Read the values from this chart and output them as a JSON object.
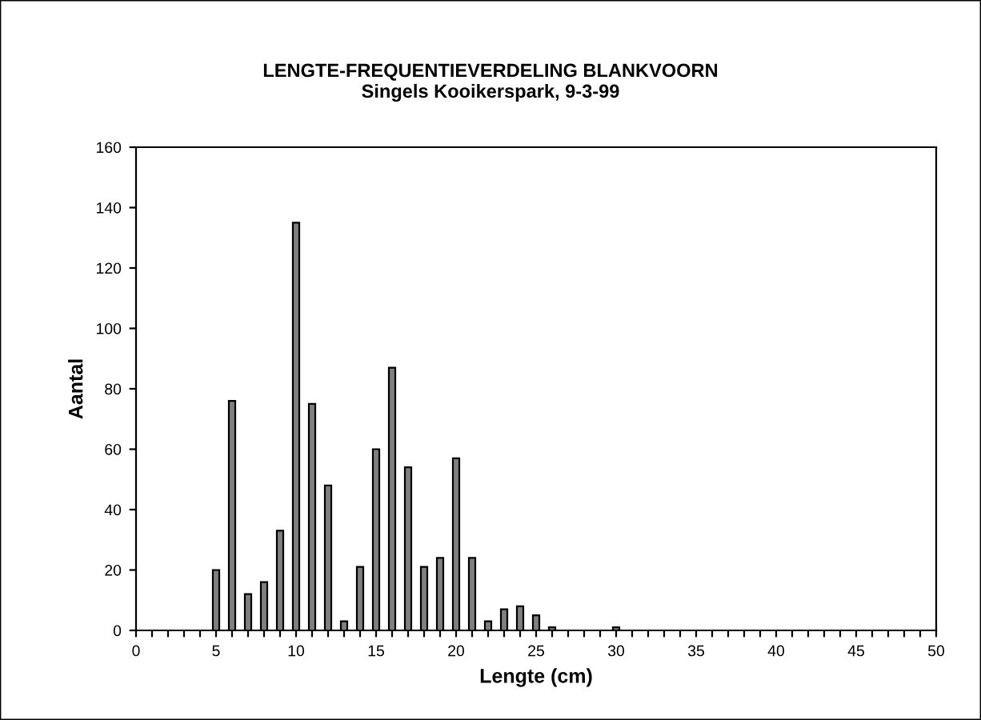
{
  "chart_data": {
    "type": "bar",
    "title": "LENGTE-FREQUENTIEVERDELING BLANKVOORN",
    "subtitle": "Singels Kooikerspark, 9-3-99",
    "xlabel": "Lengte (cm)",
    "ylabel": "Aantal",
    "x": [
      5,
      6,
      7,
      8,
      9,
      10,
      11,
      12,
      13,
      14,
      15,
      16,
      17,
      18,
      19,
      20,
      21,
      22,
      23,
      24,
      25,
      26,
      30
    ],
    "values": [
      20,
      76,
      12,
      16,
      33,
      135,
      75,
      48,
      3,
      21,
      60,
      87,
      54,
      21,
      24,
      57,
      24,
      3,
      7,
      8,
      5,
      1,
      1
    ],
    "color": "#808080",
    "xlim": [
      0,
      50
    ],
    "ylim": [
      0,
      160
    ],
    "xticks": [
      0,
      {
        "value": 1,
        "label": null
      },
      {
        "value": 2,
        "label": null
      },
      {
        "value": 3,
        "label": null
      },
      {
        "value": 4,
        "label": null
      },
      5,
      {
        "value": 6,
        "label": null
      },
      {
        "value": 7,
        "label": null
      },
      {
        "value": 8,
        "label": null
      },
      {
        "value": 9,
        "label": null
      },
      10,
      {
        "value": 11,
        "label": null
      },
      {
        "value": 12,
        "label": null
      },
      {
        "value": 13,
        "label": null
      },
      {
        "value": 14,
        "label": null
      },
      15,
      {
        "value": 16,
        "label": null
      },
      {
        "value": 17,
        "label": null
      },
      {
        "value": 18,
        "label": null
      },
      {
        "value": 19,
        "label": null
      },
      20,
      {
        "value": 21,
        "label": null
      },
      {
        "value": 22,
        "label": null
      },
      {
        "value": 23,
        "label": null
      },
      {
        "value": 24,
        "label": null
      },
      25,
      {
        "value": 26,
        "label": null
      },
      {
        "value": 27,
        "label": null
      },
      {
        "value": 28,
        "label": null
      },
      {
        "value": 29,
        "label": null
      },
      30,
      {
        "value": 31,
        "label": null
      },
      {
        "value": 32,
        "label": null
      },
      {
        "value": 33,
        "label": null
      },
      {
        "value": 34,
        "label": null
      },
      35,
      {
        "value": 36,
        "label": null
      },
      {
        "value": 37,
        "label": null
      },
      {
        "value": 38,
        "label": null
      },
      {
        "value": 39,
        "label": null
      },
      40,
      {
        "value": 41,
        "label": null
      },
      {
        "value": 42,
        "label": null
      },
      {
        "value": 43,
        "label": null
      },
      {
        "value": 44,
        "label": null
      },
      45,
      {
        "value": 46,
        "label": null
      },
      {
        "value": 47,
        "label": null
      },
      {
        "value": 48,
        "label": null
      },
      {
        "value": 49,
        "label": null
      },
      50
    ],
    "yticks": [
      0,
      20,
      40,
      60,
      80,
      100,
      120,
      140,
      160
    ],
    "grid": false,
    "legend": false
  }
}
